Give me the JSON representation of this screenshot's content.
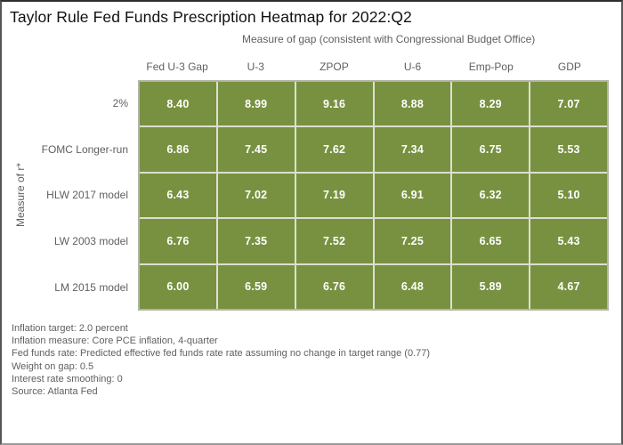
{
  "chart_data": {
    "type": "heatmap",
    "title": "Taylor Rule Fed Funds Prescription Heatmap for 2022:Q2",
    "xlabel": "Measure of gap (consistent with Congressional Budget Office)",
    "ylabel": "Measure of r*",
    "columns": [
      "Fed U-3 Gap",
      "U-3",
      "ZPOP",
      "U-6",
      "Emp-Pop",
      "GDP"
    ],
    "rows": [
      "2%",
      "FOMC Longer-run",
      "HLW 2017 model",
      "LW 2003 model",
      "LM 2015 model"
    ],
    "values": [
      [
        8.4,
        8.99,
        9.16,
        8.88,
        8.29,
        7.07
      ],
      [
        6.86,
        7.45,
        7.62,
        7.34,
        6.75,
        5.53
      ],
      [
        6.43,
        7.02,
        7.19,
        6.91,
        6.32,
        5.1
      ],
      [
        6.76,
        7.35,
        7.52,
        7.25,
        6.65,
        5.43
      ],
      [
        6.0,
        6.59,
        6.76,
        6.48,
        5.89,
        4.67
      ]
    ],
    "value_decimals": 2,
    "cell_color": "#789140",
    "cell_text_color": "#ffffff",
    "grid": true,
    "legend_position": "none"
  },
  "footnotes": [
    "Inflation target: 2.0 percent",
    "Inflation measure: Core PCE inflation, 4-quarter",
    "Fed funds rate: Predicted effective fed funds rate rate assuming no change in target range (0.77)",
    "Weight on gap: 0.5",
    "Interest rate smoothing: 0",
    "Source: Atlanta Fed"
  ]
}
